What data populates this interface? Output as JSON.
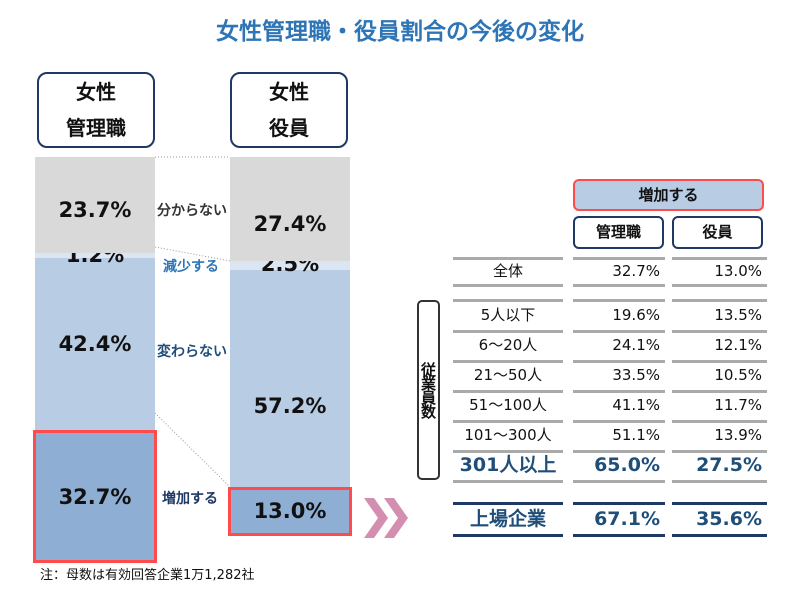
{
  "title": "女性管理職・役員割合の今後の変化",
  "chart_data": {
    "type": "bar",
    "stacked": true,
    "categories": [
      "女性\n管理職",
      "女性\n役員"
    ],
    "category_lines": [
      [
        "女性",
        "管理職"
      ],
      [
        "女性",
        "役員"
      ]
    ],
    "series": [
      {
        "name": "増加する",
        "values": [
          32.7,
          13.0
        ],
        "labels": [
          "32.7%",
          "13.0%"
        ],
        "color": "#8faed3"
      },
      {
        "name": "変わらない",
        "values": [
          42.4,
          57.2
        ],
        "labels": [
          "42.4%",
          "57.2%"
        ],
        "color": "#b8cce4"
      },
      {
        "name": "減少する",
        "values": [
          1.2,
          2.5
        ],
        "labels": [
          "1.2%",
          "2.5%"
        ],
        "color": "#dce6f2"
      },
      {
        "name": "分からない",
        "values": [
          23.7,
          27.4
        ],
        "labels": [
          "23.7%",
          "27.4%"
        ],
        "color": "#d9d9d9"
      }
    ],
    "highlight_color": "#ff4b4b"
  },
  "table": {
    "header": "増加する",
    "columns": [
      "管理職",
      "役員"
    ],
    "group_label": "従業員数",
    "total": {
      "label": "全体",
      "values": [
        "32.7%",
        "13.0%"
      ]
    },
    "rows": [
      {
        "label": "5人以下",
        "values": [
          "19.6%",
          "13.5%"
        ]
      },
      {
        "label": "6～20人",
        "values": [
          "24.1%",
          "12.1%"
        ]
      },
      {
        "label": "21～50人",
        "values": [
          "33.5%",
          "10.5%"
        ]
      },
      {
        "label": "51～100人",
        "values": [
          "41.1%",
          "11.7%"
        ]
      },
      {
        "label": "101～300人",
        "values": [
          "51.1%",
          "13.9%"
        ]
      },
      {
        "label": "301人以上",
        "values": [
          "65.0%",
          "27.5%"
        ]
      }
    ],
    "listed": {
      "label": "上場企業",
      "values": [
        "67.1%",
        "35.6%"
      ]
    }
  },
  "arrow_icon": "double-chevron-right",
  "footnote": "注：母数は有効回答企業1万1,282社"
}
